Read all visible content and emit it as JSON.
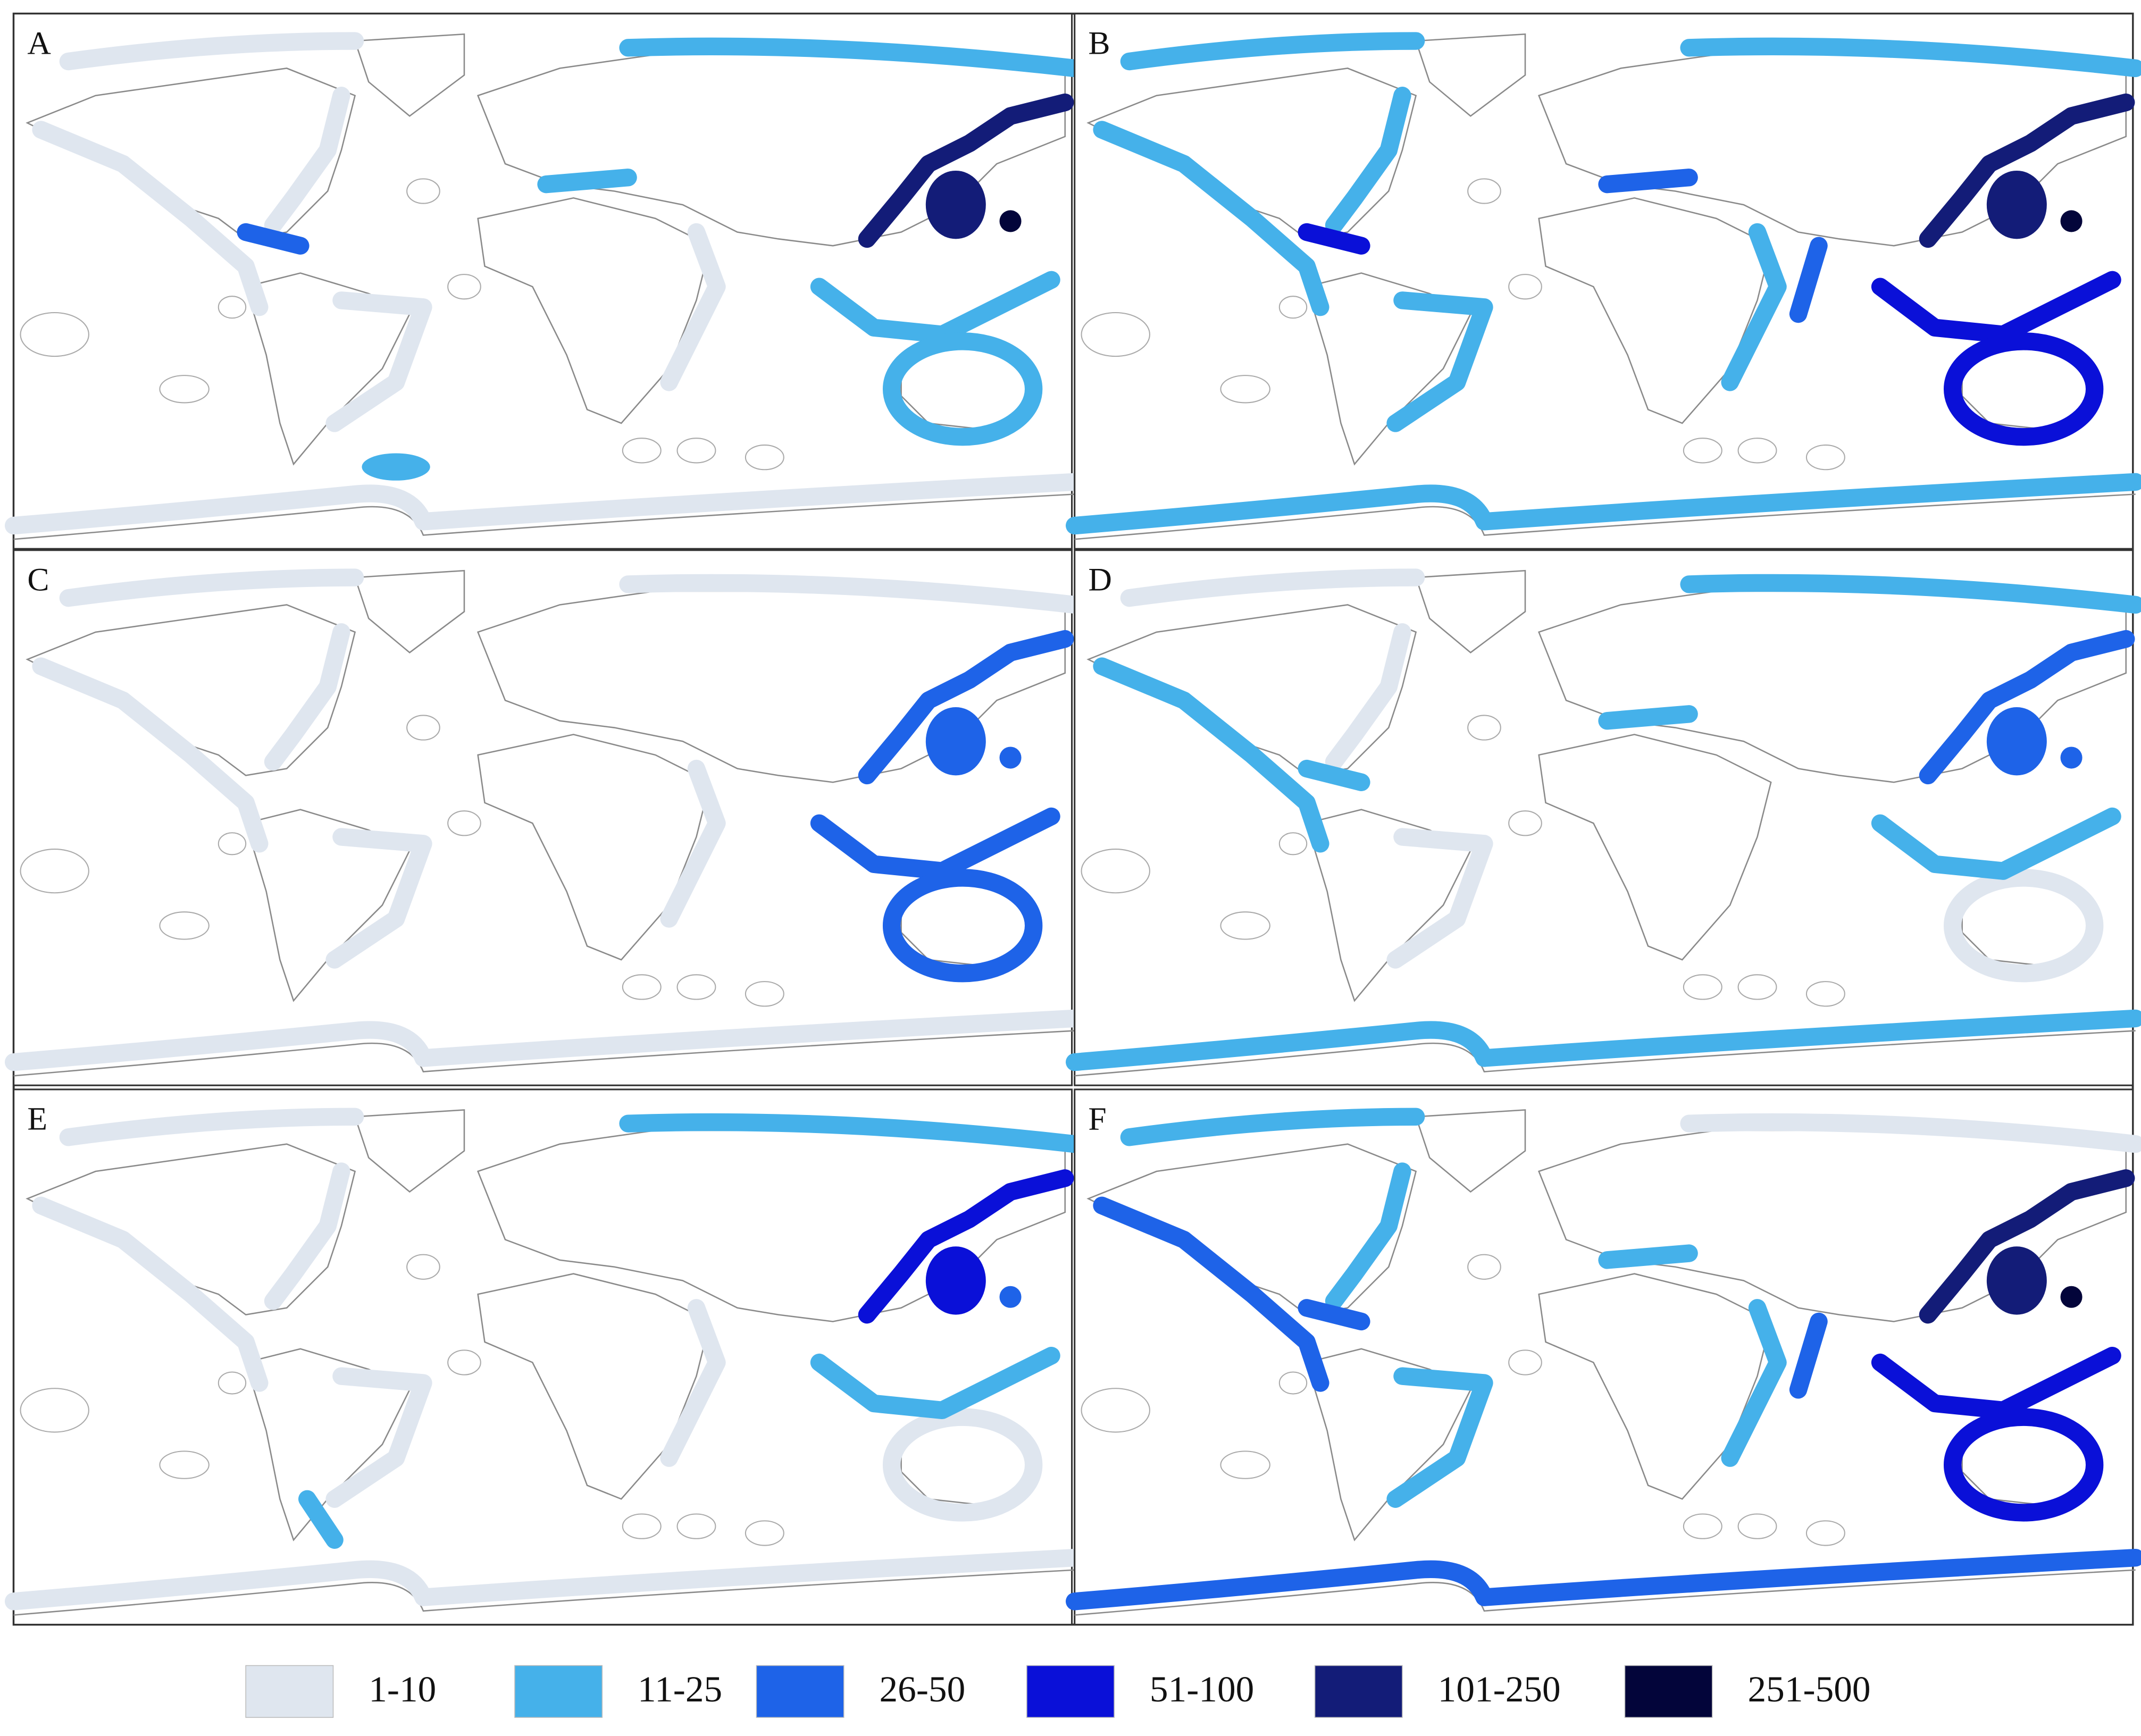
{
  "panels": [
    "A",
    "B",
    "C",
    "D",
    "E",
    "F"
  ],
  "legend": [
    {
      "label": "1-10",
      "color": "#dfe6ef"
    },
    {
      "label": "11-25",
      "color": "#45b1ea"
    },
    {
      "label": "26-50",
      "color": "#1e63e8"
    },
    {
      "label": "51-100",
      "color": "#0a10d8"
    },
    {
      "label": "101-250",
      "color": "#131c78"
    },
    {
      "label": "251-500",
      "color": "#03053a"
    }
  ]
}
